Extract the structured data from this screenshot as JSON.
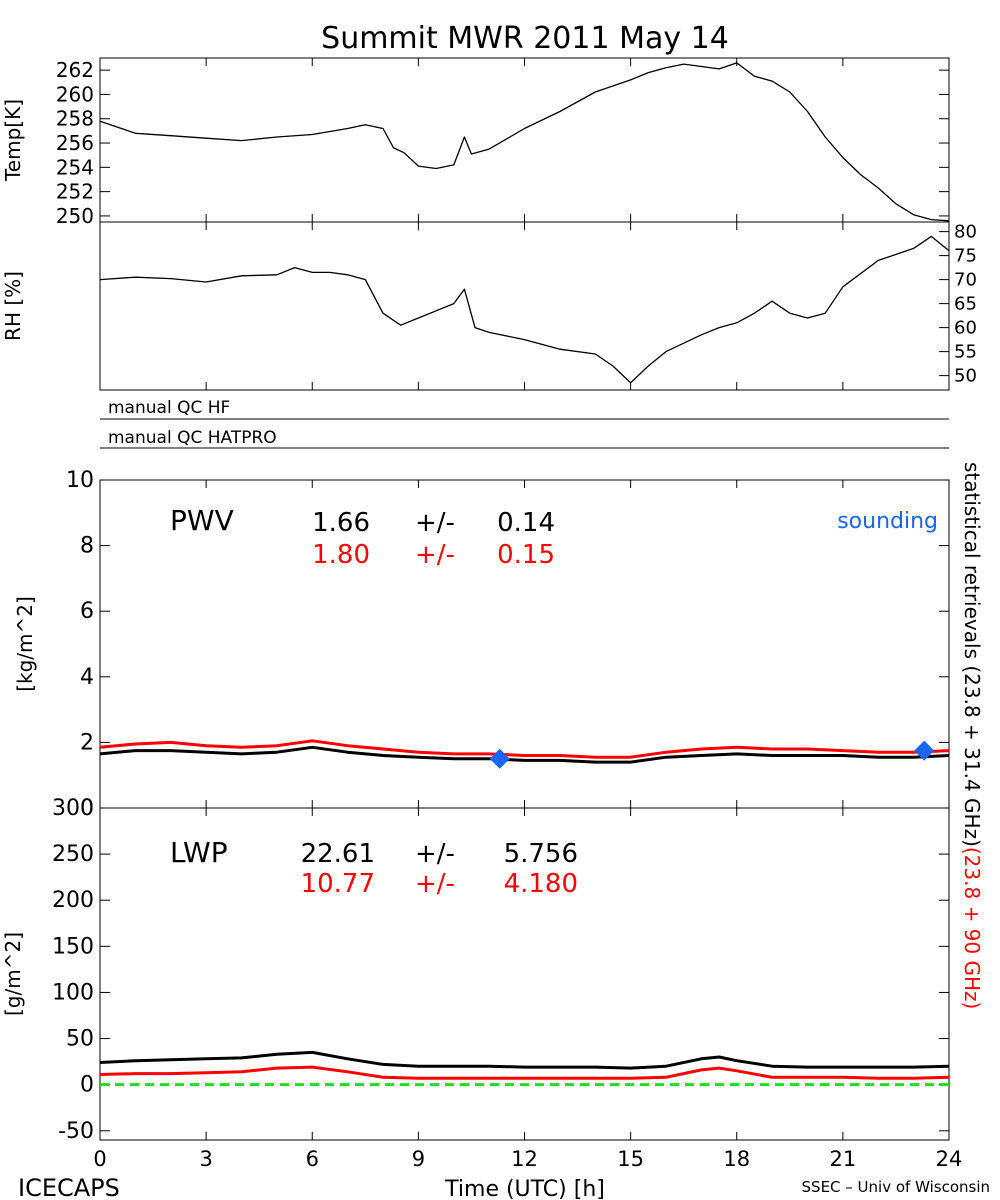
{
  "title": "Summit MWR 2011 May 14",
  "footer": {
    "left": "ICECAPS",
    "center": "Time (UTC) [h]",
    "right": "SSEC – Univ of Wisconsin"
  },
  "qc": {
    "hf": "manual QC HF",
    "hatpro": "manual QC HATPRO"
  },
  "right_label": {
    "black": "statistical retrievals (23.8 + 31.4 GHz)",
    "red": "(23.8 + 90 GHz)"
  },
  "colors": {
    "black_series": "#000000",
    "red_series": "#ff0000",
    "sounding": "#1a66f0",
    "zero_line": "#22dd22"
  },
  "chart_data": [
    {
      "id": "temp",
      "type": "line",
      "ylabel": "Temp[K]",
      "ylim": [
        249.5,
        263
      ],
      "yticks": [
        250,
        252,
        254,
        256,
        258,
        260,
        262
      ],
      "xlim": [
        0,
        24
      ],
      "series": [
        {
          "color": "#000000",
          "x": [
            0,
            0.5,
            1,
            2,
            3,
            4,
            5,
            6,
            7,
            7.5,
            8,
            8.3,
            8.6,
            9,
            9.5,
            10,
            10.3,
            10.5,
            11,
            12,
            13,
            14,
            15,
            15.5,
            16,
            16.5,
            17,
            17.5,
            18,
            18.5,
            19,
            19.5,
            20,
            20.5,
            21,
            21.5,
            22,
            22.5,
            23,
            23.5,
            24
          ],
          "values": [
            257.8,
            257.3,
            256.8,
            256.6,
            256.4,
            256.2,
            256.5,
            256.7,
            257.2,
            257.5,
            257.2,
            255.6,
            255.2,
            254.1,
            253.9,
            254.2,
            256.5,
            255.1,
            255.5,
            257.2,
            258.6,
            260.2,
            261.2,
            261.8,
            262.2,
            262.5,
            262.3,
            262.1,
            262.6,
            261.5,
            261.1,
            260.2,
            258.6,
            256.5,
            254.8,
            253.4,
            252.3,
            251.0,
            250.1,
            249.7,
            249.6
          ]
        }
      ]
    },
    {
      "id": "rh",
      "type": "line",
      "ylabel": "RH [%]",
      "ylim": [
        47,
        82
      ],
      "yticks": [
        50,
        55,
        60,
        65,
        70,
        75,
        80
      ],
      "xlim": [
        0,
        24
      ],
      "series": [
        {
          "color": "#000000",
          "x": [
            0,
            1,
            2,
            3,
            4,
            5,
            5.5,
            6,
            6.5,
            7,
            7.5,
            8,
            8.5,
            9,
            9.5,
            10,
            10.3,
            10.6,
            11,
            12,
            13,
            14,
            14.5,
            15,
            15.5,
            16,
            17,
            17.5,
            18,
            18.5,
            19,
            19.5,
            20,
            20.5,
            21,
            22,
            23,
            23.5,
            24
          ],
          "values": [
            70,
            70.5,
            70.2,
            69.5,
            70.8,
            71,
            72.5,
            71.5,
            71.5,
            71,
            70,
            63,
            60.5,
            62,
            63.5,
            65,
            68,
            60,
            59,
            57.5,
            55.5,
            54.5,
            52,
            48.5,
            52,
            55,
            58.5,
            60,
            61,
            63,
            65.5,
            63,
            62,
            63,
            68.5,
            74,
            76.5,
            79,
            76
          ]
        }
      ]
    },
    {
      "id": "pwv",
      "type": "line",
      "panel_label": "PWV",
      "ylabel": "[kg/m^2]",
      "ylim": [
        0,
        10
      ],
      "yticks": [
        0,
        2,
        4,
        6,
        8,
        10
      ],
      "xlim": [
        0,
        24
      ],
      "stats": [
        {
          "value": "1.66",
          "pm": "+/-",
          "err": "0.14",
          "color": "#000000"
        },
        {
          "value": "1.80",
          "pm": "+/-",
          "err": "0.15",
          "color": "#ff0000"
        }
      ],
      "sounding_label": "sounding",
      "sounding_points": {
        "x": [
          11.3,
          23.3
        ],
        "values": [
          1.5,
          1.75
        ]
      },
      "series": [
        {
          "color": "#000000",
          "x": [
            0,
            1,
            2,
            3,
            4,
            5,
            6,
            7,
            8,
            9,
            10,
            11,
            12,
            13,
            14,
            15,
            16,
            17,
            18,
            19,
            20,
            21,
            22,
            23,
            24
          ],
          "values": [
            1.65,
            1.75,
            1.75,
            1.7,
            1.65,
            1.7,
            1.85,
            1.7,
            1.6,
            1.55,
            1.5,
            1.5,
            1.45,
            1.45,
            1.4,
            1.4,
            1.55,
            1.6,
            1.65,
            1.6,
            1.6,
            1.6,
            1.55,
            1.55,
            1.6
          ]
        },
        {
          "color": "#ff0000",
          "x": [
            0,
            1,
            2,
            3,
            4,
            5,
            6,
            7,
            8,
            9,
            10,
            11,
            12,
            13,
            14,
            15,
            16,
            17,
            18,
            19,
            20,
            21,
            22,
            23,
            24
          ],
          "values": [
            1.85,
            1.95,
            2.0,
            1.9,
            1.85,
            1.9,
            2.05,
            1.9,
            1.8,
            1.7,
            1.65,
            1.65,
            1.6,
            1.6,
            1.55,
            1.55,
            1.7,
            1.8,
            1.85,
            1.8,
            1.8,
            1.75,
            1.7,
            1.7,
            1.75
          ]
        }
      ]
    },
    {
      "id": "lwp",
      "type": "line",
      "panel_label": "LWP",
      "ylabel": "[g/m^2]",
      "ylim": [
        -60,
        300
      ],
      "yticks": [
        -50,
        0,
        50,
        100,
        150,
        200,
        250,
        300
      ],
      "xlim": [
        0,
        24
      ],
      "xticks": [
        0,
        3,
        6,
        9,
        12,
        15,
        18,
        21,
        24
      ],
      "stats": [
        {
          "value": "22.61",
          "pm": "+/-",
          "err": "5.756",
          "color": "#000000"
        },
        {
          "value": "10.77",
          "pm": "+/-",
          "err": "4.180",
          "color": "#ff0000"
        }
      ],
      "zero_line": 0,
      "series": [
        {
          "color": "#000000",
          "x": [
            0,
            1,
            2,
            3,
            4,
            5,
            6,
            7,
            8,
            9,
            10,
            11,
            12,
            13,
            14,
            15,
            16,
            17,
            17.5,
            18,
            19,
            20,
            21,
            22,
            23,
            24
          ],
          "values": [
            24,
            26,
            27,
            28,
            29,
            33,
            35,
            28,
            22,
            20,
            20,
            20,
            19,
            19,
            19,
            18,
            20,
            28,
            30,
            26,
            20,
            19,
            19,
            19,
            19,
            20
          ]
        },
        {
          "color": "#ff0000",
          "x": [
            0,
            1,
            2,
            3,
            4,
            5,
            6,
            7,
            8,
            9,
            10,
            11,
            12,
            13,
            14,
            15,
            16,
            17,
            17.5,
            18,
            19,
            20,
            21,
            22,
            23,
            24
          ],
          "values": [
            11,
            12,
            12,
            13,
            14,
            18,
            19,
            14,
            8,
            7,
            7,
            7,
            7,
            7,
            7,
            7,
            8,
            16,
            18,
            15,
            8,
            8,
            8,
            7,
            7,
            8
          ]
        }
      ]
    }
  ]
}
